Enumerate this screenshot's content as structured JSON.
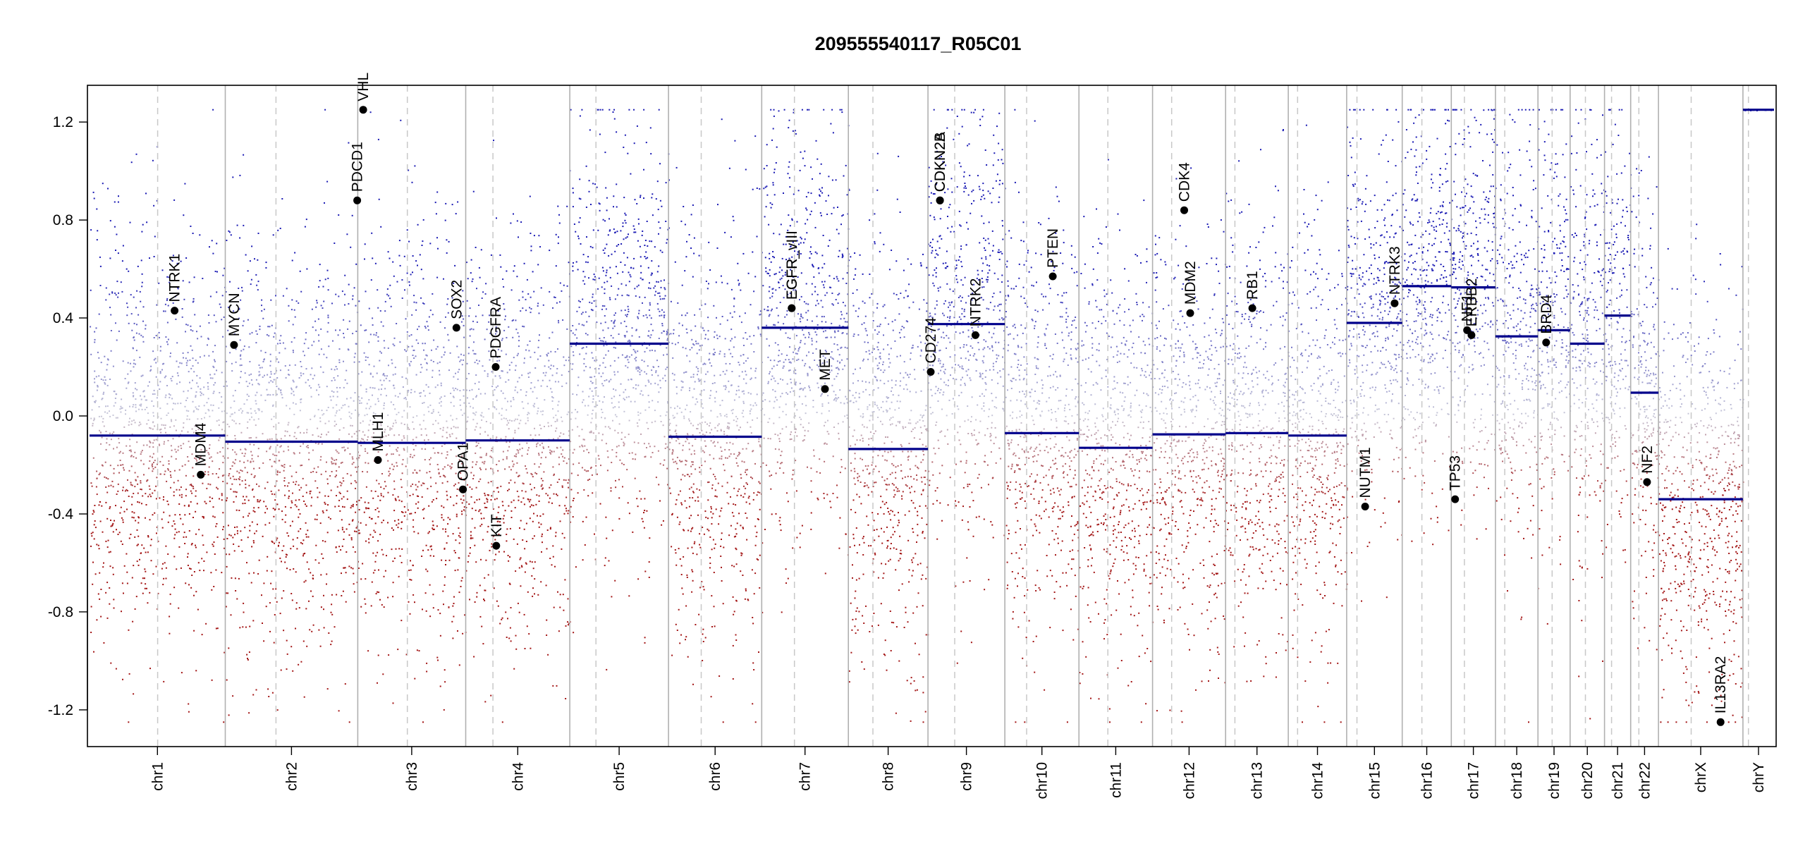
{
  "chart_data": {
    "type": "scatter",
    "title": "209555540117_R05C01",
    "xlabel": "",
    "ylabel": "",
    "ylim": [
      -1.35,
      1.35
    ],
    "y_ticks": [
      -1.2,
      -0.8,
      -0.4,
      0.0,
      0.4,
      0.8,
      1.2
    ],
    "y_tick_labels": [
      "-1.2",
      "-0.8",
      "-0.4",
      "0.0",
      "0.4",
      "0.8",
      "1.2"
    ],
    "grid": false,
    "clip_limits": [
      -1.25,
      1.25
    ],
    "colors": {
      "gain": "#1a1ab4",
      "loss": "#a31515",
      "neutral": "#c8c8d8",
      "segment": "#00008b",
      "gene_point": "#000000",
      "chrom_boundary": "#b0b0b0",
      "centromere": "#c8c8c8"
    },
    "chromosomes": [
      {
        "name": "chr1",
        "label": "chr1",
        "size": 249,
        "centromere": 125,
        "segment_mean": -0.08
      },
      {
        "name": "chr2",
        "label": "chr2",
        "size": 243,
        "centromere": 93,
        "segment_mean": -0.105
      },
      {
        "name": "chr3",
        "label": "chr3",
        "size": 198,
        "centromere": 91,
        "segment_mean": -0.11
      },
      {
        "name": "chr4",
        "label": "chr4",
        "size": 191,
        "centromere": 50,
        "segment_mean": -0.1
      },
      {
        "name": "chr5",
        "label": "chr5",
        "size": 181,
        "centromere": 48,
        "segment_mean": 0.295
      },
      {
        "name": "chr6",
        "label": "chr6",
        "size": 171,
        "centromere": 60,
        "segment_mean": -0.085
      },
      {
        "name": "chr7",
        "label": "chr7",
        "size": 159,
        "centromere": 60,
        "segment_mean": 0.36
      },
      {
        "name": "chr8",
        "label": "chr8",
        "size": 146,
        "centromere": 45,
        "segment_mean": -0.135
      },
      {
        "name": "chr9",
        "label": "chr9",
        "size": 141,
        "centromere": 49,
        "segment_mean": 0.375
      },
      {
        "name": "chr10",
        "label": "chr10",
        "size": 136,
        "centromere": 40,
        "segment_mean": -0.07
      },
      {
        "name": "chr11",
        "label": "chr11",
        "size": 135,
        "centromere": 53,
        "segment_mean": -0.13
      },
      {
        "name": "chr12",
        "label": "chr12",
        "size": 134,
        "centromere": 35,
        "segment_mean": -0.075
      },
      {
        "name": "chr13",
        "label": "chr13",
        "size": 115,
        "centromere": 17,
        "segment_mean": -0.07
      },
      {
        "name": "chr14",
        "label": "chr14",
        "size": 107,
        "centromere": 17,
        "segment_mean": -0.08
      },
      {
        "name": "chr15",
        "label": "chr15",
        "size": 102,
        "centromere": 19,
        "segment_mean": 0.38
      },
      {
        "name": "chr16",
        "label": "chr16",
        "size": 90,
        "centromere": 36,
        "segment_mean": 0.53
      },
      {
        "name": "chr17",
        "label": "chr17",
        "size": 81,
        "centromere": 24,
        "segment_mean": 0.525
      },
      {
        "name": "chr18",
        "label": "chr18",
        "size": 78,
        "centromere": 17,
        "segment_mean": 0.325
      },
      {
        "name": "chr19",
        "label": "chr19",
        "size": 59,
        "centromere": 26,
        "segment_mean": 0.35
      },
      {
        "name": "chr20",
        "label": "chr20",
        "size": 63,
        "centromere": 28,
        "segment_mean": 0.295
      },
      {
        "name": "chr21",
        "label": "chr21",
        "size": 48,
        "centromere": 13,
        "segment_mean": 0.41
      },
      {
        "name": "chr22",
        "label": "chr22",
        "size": 51,
        "centromere": 15,
        "segment_mean": 0.095
      },
      {
        "name": "chrX",
        "label": "chrX",
        "size": 155,
        "centromere": 60,
        "segment_mean": -0.34
      },
      {
        "name": "chrY",
        "label": "chrY",
        "size": 57,
        "centromere": 10,
        "segment_mean": 1.25
      }
    ],
    "genes": [
      {
        "name": "NTRK1",
        "chrom": "chr1",
        "pos": 156,
        "value": 0.43
      },
      {
        "name": "MDM4",
        "chrom": "chr1",
        "pos": 204,
        "value": -0.24
      },
      {
        "name": "MYCN",
        "chrom": "chr2",
        "pos": 16,
        "value": 0.29
      },
      {
        "name": "VHL",
        "chrom": "chr3",
        "pos": 10,
        "value": 1.25
      },
      {
        "name": "PDCD1",
        "chrom": "chr2",
        "pos": 242,
        "value": 0.88
      },
      {
        "name": "MLH1",
        "chrom": "chr3",
        "pos": 37,
        "value": -0.18
      },
      {
        "name": "SOX2",
        "chrom": "chr3",
        "pos": 181,
        "value": 0.36
      },
      {
        "name": "OPA1",
        "chrom": "chr3",
        "pos": 193,
        "value": -0.3
      },
      {
        "name": "PDGFRA",
        "chrom": "chr4",
        "pos": 55,
        "value": 0.2
      },
      {
        "name": "KIT",
        "chrom": "chr4",
        "pos": 56,
        "value": -0.53
      },
      {
        "name": "EGFR",
        "chrom": "chr7",
        "pos": 55,
        "value": 0.44
      },
      {
        "name": "EGFR_vIII",
        "chrom": "chr7",
        "pos": 55,
        "value": 0.44
      },
      {
        "name": "MET",
        "chrom": "chr7",
        "pos": 116,
        "value": 0.11
      },
      {
        "name": "CD274",
        "chrom": "chr9",
        "pos": 5,
        "value": 0.18
      },
      {
        "name": "CDKN2B",
        "chrom": "chr9",
        "pos": 22,
        "value": 0.88
      },
      {
        "name": "CDKN2A",
        "chrom": "chr9",
        "pos": 22,
        "value": 0.88
      },
      {
        "name": "NTRK2",
        "chrom": "chr9",
        "pos": 87,
        "value": 0.33
      },
      {
        "name": "PTEN",
        "chrom": "chr10",
        "pos": 88,
        "value": 0.57
      },
      {
        "name": "CDK4",
        "chrom": "chr12",
        "pos": 58,
        "value": 0.84
      },
      {
        "name": "MDM2",
        "chrom": "chr12",
        "pos": 69,
        "value": 0.42
      },
      {
        "name": "RB1",
        "chrom": "chr13",
        "pos": 49,
        "value": 0.44
      },
      {
        "name": "NUTM1",
        "chrom": "chr15",
        "pos": 34,
        "value": -0.37
      },
      {
        "name": "NTRK3",
        "chrom": "chr15",
        "pos": 88,
        "value": 0.46
      },
      {
        "name": "TP53",
        "chrom": "chr17",
        "pos": 7,
        "value": -0.34
      },
      {
        "name": "NF1",
        "chrom": "chr17",
        "pos": 29,
        "value": 0.35
      },
      {
        "name": "ERBB2",
        "chrom": "chr17",
        "pos": 37,
        "value": 0.33
      },
      {
        "name": "BRD4",
        "chrom": "chr19",
        "pos": 15,
        "value": 0.3
      },
      {
        "name": "NF2",
        "chrom": "chr22",
        "pos": 30,
        "value": -0.27
      },
      {
        "name": "IL13RA2",
        "chrom": "chrX",
        "pos": 114,
        "value": -1.25
      }
    ]
  }
}
